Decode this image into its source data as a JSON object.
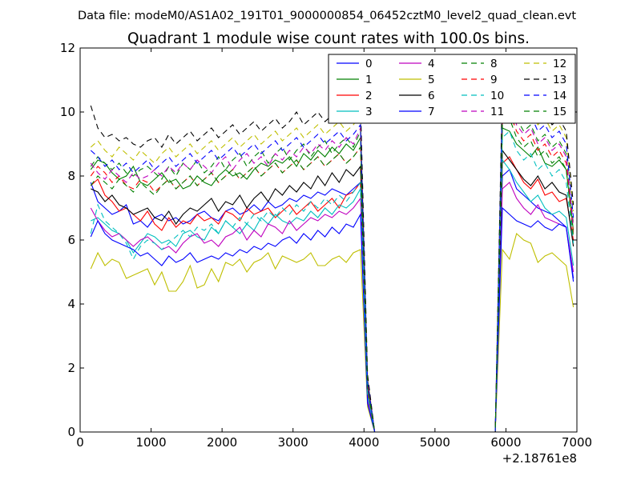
{
  "chart_data": {
    "type": "line",
    "suptitle": "Data file: modeM0/AS1A02_191T01_9000000854_06452cztM0_level2_quad_clean.evt",
    "title": "Quadrant 1 module wise count rates with 100.0s bins.",
    "xlabel": "",
    "ylabel": "",
    "x_offset_label": "+2.18761e8",
    "xlim": [
      0,
      7000
    ],
    "ylim": [
      0,
      12
    ],
    "xticks": [
      0,
      1000,
      2000,
      3000,
      4000,
      5000,
      6000,
      7000
    ],
    "yticks": [
      0,
      2,
      4,
      6,
      8,
      10,
      12
    ],
    "legend": "top-right",
    "x": [
      150,
      250,
      350,
      450,
      550,
      650,
      750,
      850,
      950,
      1050,
      1150,
      1250,
      1350,
      1450,
      1550,
      1650,
      1750,
      1850,
      1950,
      2050,
      2150,
      2250,
      2350,
      2450,
      2550,
      2650,
      2750,
      2850,
      2950,
      3050,
      3150,
      3250,
      3350,
      3450,
      3550,
      3650,
      3750,
      3850,
      3950,
      4050,
      4150,
      4250,
      4350,
      4450,
      4550,
      4650,
      4750,
      4850,
      4950,
      5050,
      5150,
      5250,
      5350,
      5450,
      5550,
      5650,
      5750,
      5850,
      5950,
      6050,
      6150,
      6250,
      6350,
      6450,
      6550,
      6650,
      6750,
      6850,
      6950
    ],
    "series": [
      {
        "name": "0",
        "color": "#0000ff",
        "dash": "solid",
        "values": [
          7.8,
          7.2,
          7.0,
          6.8,
          6.9,
          7.1,
          6.5,
          6.6,
          6.4,
          6.7,
          6.8,
          6.6,
          6.7,
          6.5,
          6.6,
          6.8,
          6.9,
          6.7,
          6.6,
          6.9,
          7.0,
          6.8,
          6.9,
          7.1,
          6.9,
          7.2,
          7.0,
          7.1,
          7.3,
          7.2,
          7.4,
          7.3,
          7.5,
          7.4,
          7.6,
          7.5,
          7.4,
          7.6,
          7.8,
          1.2,
          0,
          0,
          0,
          0,
          0,
          0,
          0,
          0,
          0,
          0,
          0,
          0,
          0,
          0,
          0,
          0,
          0,
          0,
          8.0,
          8.2,
          7.6,
          7.4,
          7.2,
          7.0,
          6.9,
          6.8,
          6.6,
          6.4,
          4.8
        ]
      },
      {
        "name": "1",
        "color": "#008000",
        "dash": "solid",
        "values": [
          8.2,
          8.5,
          8.4,
          8.1,
          7.9,
          8.0,
          8.3,
          7.8,
          7.7,
          7.9,
          8.1,
          7.8,
          7.9,
          7.6,
          7.7,
          8.0,
          7.8,
          7.7,
          8.0,
          8.2,
          8.0,
          8.1,
          7.9,
          8.2,
          8.4,
          8.3,
          8.5,
          8.4,
          8.6,
          8.3,
          8.7,
          8.5,
          8.8,
          8.6,
          8.9,
          8.7,
          9.0,
          8.8,
          9.2,
          1.4,
          0,
          0,
          0,
          0,
          0,
          0,
          0,
          0,
          0,
          0,
          0,
          0,
          0,
          0,
          0,
          0,
          0,
          0,
          9.5,
          9.4,
          9.0,
          8.8,
          8.6,
          8.9,
          8.4,
          8.3,
          8.5,
          8.2,
          6.3
        ]
      },
      {
        "name": "2",
        "color": "#ff0000",
        "dash": "solid",
        "values": [
          7.7,
          7.9,
          7.4,
          7.2,
          6.9,
          7.0,
          6.8,
          6.6,
          6.9,
          6.5,
          6.3,
          6.7,
          6.4,
          6.6,
          6.5,
          6.8,
          6.6,
          6.7,
          6.5,
          6.9,
          6.8,
          6.6,
          7.0,
          6.8,
          6.9,
          7.0,
          6.7,
          6.9,
          7.1,
          6.8,
          7.0,
          7.2,
          6.9,
          7.1,
          7.3,
          7.0,
          7.4,
          7.5,
          7.8,
          1.3,
          0,
          0,
          0,
          0,
          0,
          0,
          0,
          0,
          0,
          0,
          0,
          0,
          0,
          0,
          0,
          0,
          0,
          0,
          8.4,
          8.6,
          8.2,
          7.8,
          7.6,
          7.9,
          7.4,
          7.5,
          7.2,
          7.3,
          6.0
        ]
      },
      {
        "name": "3",
        "color": "#00bfbf",
        "dash": "solid",
        "values": [
          6.6,
          6.7,
          6.5,
          6.3,
          6.2,
          6.0,
          5.6,
          5.9,
          6.2,
          6.1,
          5.9,
          6.0,
          5.8,
          6.2,
          6.3,
          6.1,
          6.0,
          6.4,
          6.2,
          6.6,
          6.4,
          6.2,
          6.5,
          6.3,
          6.7,
          6.5,
          6.8,
          6.6,
          6.5,
          6.7,
          6.6,
          6.9,
          6.7,
          7.0,
          6.8,
          7.1,
          7.0,
          7.2,
          7.6,
          1.1,
          0,
          0,
          0,
          0,
          0,
          0,
          0,
          0,
          0,
          0,
          0,
          0,
          0,
          0,
          0,
          0,
          0,
          0,
          8.5,
          8.2,
          7.8,
          7.5,
          7.2,
          7.4,
          7.0,
          6.8,
          6.9,
          6.7,
          5.2
        ]
      },
      {
        "name": "4",
        "color": "#bf00bf",
        "dash": "solid",
        "values": [
          7.0,
          6.6,
          6.3,
          6.1,
          6.2,
          6.0,
          5.8,
          6.0,
          6.1,
          5.9,
          5.7,
          5.8,
          5.6,
          5.9,
          6.1,
          6.2,
          5.9,
          6.0,
          5.8,
          6.1,
          6.2,
          6.4,
          6.0,
          6.3,
          6.1,
          6.5,
          6.4,
          6.2,
          6.6,
          6.3,
          6.5,
          6.7,
          6.6,
          6.8,
          6.7,
          6.9,
          6.8,
          7.0,
          7.3,
          1.0,
          0,
          0,
          0,
          0,
          0,
          0,
          0,
          0,
          0,
          0,
          0,
          0,
          0,
          0,
          0,
          0,
          0,
          0,
          7.6,
          7.8,
          7.3,
          7.0,
          6.8,
          7.1,
          6.7,
          6.6,
          6.5,
          6.4,
          5.0
        ]
      },
      {
        "name": "5",
        "color": "#bfbf00",
        "dash": "solid",
        "values": [
          5.1,
          5.6,
          5.2,
          5.4,
          5.3,
          4.8,
          4.9,
          5.0,
          5.1,
          4.6,
          5.0,
          4.4,
          4.4,
          4.7,
          5.2,
          4.5,
          4.6,
          5.1,
          4.7,
          5.3,
          5.2,
          5.4,
          5.0,
          5.3,
          5.4,
          5.6,
          5.1,
          5.5,
          5.4,
          5.3,
          5.4,
          5.6,
          5.2,
          5.2,
          5.4,
          5.5,
          5.3,
          5.6,
          5.7,
          0.8,
          0,
          0,
          0,
          0,
          0,
          0,
          0,
          0,
          0,
          0,
          0,
          0,
          0,
          0,
          0,
          0,
          0,
          0,
          5.7,
          5.4,
          6.2,
          6.0,
          5.9,
          5.3,
          5.5,
          5.6,
          5.4,
          5.2,
          3.9
        ]
      },
      {
        "name": "6",
        "color": "#000000",
        "dash": "solid",
        "values": [
          7.6,
          7.5,
          7.2,
          7.4,
          7.1,
          7.0,
          6.8,
          6.9,
          7.0,
          6.7,
          6.6,
          6.9,
          6.5,
          6.8,
          7.0,
          6.9,
          7.1,
          7.3,
          6.9,
          7.2,
          7.1,
          7.4,
          7.0,
          7.3,
          7.5,
          7.2,
          7.6,
          7.4,
          7.7,
          7.5,
          7.8,
          7.6,
          8.0,
          7.7,
          8.1,
          7.8,
          8.2,
          8.0,
          8.3,
          1.5,
          0,
          0,
          0,
          0,
          0,
          0,
          0,
          0,
          0,
          0,
          0,
          0,
          0,
          0,
          0,
          0,
          0,
          0,
          8.8,
          8.5,
          8.2,
          7.9,
          7.7,
          8.0,
          7.6,
          7.8,
          7.5,
          7.4,
          5.8
        ]
      },
      {
        "name": "7",
        "color": "#0000ff",
        "dash": "solid",
        "values": [
          6.1,
          6.6,
          6.2,
          6.0,
          5.9,
          5.8,
          5.7,
          5.5,
          5.6,
          5.4,
          5.2,
          5.5,
          5.3,
          5.4,
          5.6,
          5.3,
          5.4,
          5.5,
          5.4,
          5.6,
          5.5,
          5.7,
          5.6,
          5.8,
          5.7,
          5.9,
          5.8,
          6.0,
          6.1,
          5.9,
          6.2,
          6.0,
          6.3,
          6.1,
          6.4,
          6.2,
          6.5,
          6.4,
          6.8,
          0.9,
          0,
          0,
          0,
          0,
          0,
          0,
          0,
          0,
          0,
          0,
          0,
          0,
          0,
          0,
          0,
          0,
          0,
          0,
          7.0,
          6.8,
          6.6,
          6.5,
          6.4,
          6.6,
          6.4,
          6.3,
          6.5,
          6.4,
          4.7
        ]
      },
      {
        "name": "8",
        "color": "#008000",
        "dash": "dashed",
        "values": [
          8.3,
          8.6,
          8.4,
          8.2,
          8.4,
          8.1,
          8.0,
          8.2,
          8.3,
          8.1,
          7.9,
          8.3,
          8.0,
          8.4,
          8.2,
          8.5,
          8.1,
          8.3,
          8.6,
          8.2,
          8.5,
          8.7,
          8.3,
          8.6,
          8.8,
          8.4,
          8.7,
          8.9,
          8.5,
          8.8,
          9.0,
          8.6,
          8.9,
          9.1,
          8.7,
          9.0,
          9.2,
          8.9,
          9.4,
          1.6,
          0,
          0,
          0,
          0,
          0,
          0,
          0,
          0,
          0,
          0,
          0,
          0,
          0,
          0,
          0,
          0,
          0,
          0,
          10.2,
          10.4,
          9.8,
          9.4,
          9.6,
          9.1,
          9.3,
          8.9,
          9.1,
          8.7,
          6.5
        ]
      },
      {
        "name": "9",
        "color": "#ff0000",
        "dash": "dashed",
        "values": [
          8.0,
          8.3,
          8.1,
          7.8,
          8.0,
          7.7,
          7.6,
          7.9,
          7.8,
          7.5,
          7.7,
          7.9,
          7.6,
          7.8,
          8.0,
          7.7,
          7.9,
          8.1,
          7.8,
          8.0,
          8.2,
          7.9,
          8.1,
          8.3,
          8.0,
          8.2,
          8.4,
          8.1,
          8.3,
          8.5,
          8.2,
          8.4,
          8.6,
          8.3,
          8.5,
          8.7,
          8.4,
          8.6,
          8.9,
          1.4,
          0,
          0,
          0,
          0,
          0,
          0,
          0,
          0,
          0,
          0,
          0,
          0,
          0,
          0,
          0,
          0,
          0,
          0,
          9.8,
          10.0,
          9.4,
          9.1,
          9.3,
          8.8,
          9.0,
          8.6,
          8.8,
          8.4,
          6.2
        ]
      },
      {
        "name": "10",
        "color": "#00bfbf",
        "dash": "dashed",
        "values": [
          6.2,
          7.1,
          6.6,
          6.4,
          6.2,
          5.9,
          5.4,
          5.8,
          6.0,
          5.9,
          5.7,
          5.9,
          6.1,
          6.3,
          6.1,
          6.4,
          6.3,
          6.5,
          6.2,
          6.6,
          6.4,
          6.7,
          6.5,
          6.8,
          6.6,
          6.9,
          6.7,
          7.0,
          6.8,
          7.1,
          6.9,
          7.2,
          7.0,
          7.3,
          7.1,
          7.4,
          7.2,
          7.5,
          7.8,
          1.2,
          0,
          0,
          0,
          0,
          0,
          0,
          0,
          0,
          0,
          0,
          0,
          0,
          0,
          0,
          0,
          0,
          0,
          0,
          9.2,
          9.4,
          8.8,
          8.5,
          8.7,
          8.2,
          8.4,
          8.0,
          8.2,
          7.8,
          5.9
        ]
      },
      {
        "name": "11",
        "color": "#bf00bf",
        "dash": "dashed",
        "values": [
          8.4,
          8.1,
          7.9,
          8.2,
          8.0,
          7.8,
          8.1,
          7.9,
          8.0,
          8.2,
          8.0,
          8.3,
          8.1,
          8.4,
          8.2,
          8.5,
          8.3,
          8.1,
          8.4,
          8.6,
          8.2,
          8.5,
          8.7,
          8.4,
          8.6,
          8.3,
          8.7,
          8.5,
          8.8,
          8.6,
          8.9,
          8.7,
          9.0,
          8.8,
          9.1,
          8.9,
          9.2,
          9.0,
          9.5,
          1.6,
          0,
          0,
          0,
          0,
          0,
          0,
          0,
          0,
          0,
          0,
          0,
          0,
          0,
          0,
          0,
          0,
          0,
          0,
          10.0,
          10.3,
          9.6,
          9.3,
          9.5,
          9.0,
          9.2,
          8.8,
          9.0,
          8.6,
          6.4
        ]
      },
      {
        "name": "12",
        "color": "#bfbf00",
        "dash": "dashed",
        "values": [
          8.9,
          9.1,
          8.8,
          8.6,
          8.9,
          8.7,
          8.5,
          8.8,
          8.6,
          8.4,
          8.7,
          8.9,
          8.6,
          8.8,
          9.0,
          8.7,
          8.9,
          9.1,
          8.8,
          9.0,
          9.2,
          8.9,
          9.1,
          9.3,
          9.0,
          9.2,
          9.4,
          9.1,
          9.3,
          9.5,
          9.2,
          9.4,
          9.6,
          9.3,
          9.5,
          9.7,
          9.4,
          9.6,
          9.9,
          1.7,
          0,
          0,
          0,
          0,
          0,
          0,
          0,
          0,
          0,
          0,
          0,
          0,
          0,
          0,
          0,
          0,
          0,
          0,
          10.6,
          10.8,
          10.2,
          9.9,
          10.1,
          9.6,
          9.8,
          9.4,
          9.6,
          9.2,
          6.9
        ]
      },
      {
        "name": "13",
        "color": "#000000",
        "dash": "dashed",
        "values": [
          10.2,
          9.5,
          9.2,
          9.3,
          9.1,
          9.2,
          9.0,
          8.9,
          9.1,
          9.2,
          8.9,
          9.3,
          9.0,
          9.2,
          9.4,
          9.1,
          9.3,
          9.5,
          9.2,
          9.4,
          9.6,
          9.3,
          9.5,
          9.7,
          9.4,
          9.6,
          9.8,
          9.5,
          9.7,
          10.0,
          9.6,
          9.8,
          10.0,
          9.7,
          9.9,
          10.1,
          9.8,
          10.0,
          10.3,
          1.8,
          0,
          0,
          0,
          0,
          0,
          0,
          0,
          0,
          0,
          0,
          0,
          0,
          0,
          0,
          0,
          0,
          0,
          0,
          10.8,
          11.0,
          10.4,
          10.1,
          10.3,
          9.8,
          10.0,
          9.6,
          9.8,
          9.4,
          7.1
        ]
      },
      {
        "name": "14",
        "color": "#0000ff",
        "dash": "dashed",
        "values": [
          8.8,
          8.6,
          8.3,
          8.5,
          8.2,
          8.4,
          8.1,
          8.3,
          8.5,
          8.2,
          8.4,
          8.6,
          8.3,
          8.5,
          8.7,
          8.4,
          8.6,
          8.8,
          8.5,
          8.7,
          8.9,
          8.6,
          8.8,
          9.0,
          8.7,
          8.9,
          9.1,
          8.8,
          9.0,
          9.2,
          8.9,
          9.1,
          9.3,
          9.0,
          9.2,
          9.4,
          9.1,
          9.3,
          9.6,
          1.6,
          0,
          0,
          0,
          0,
          0,
          0,
          0,
          0,
          0,
          0,
          0,
          0,
          0,
          0,
          0,
          0,
          0,
          0,
          10.4,
          10.6,
          10.0,
          9.7,
          9.9,
          9.4,
          9.6,
          9.2,
          9.4,
          9.0,
          6.7
        ]
      },
      {
        "name": "15",
        "color": "#008000",
        "dash": "dashed",
        "values": [
          7.7,
          8.0,
          7.8,
          7.6,
          7.9,
          7.7,
          7.5,
          7.8,
          7.6,
          7.4,
          7.7,
          7.9,
          7.6,
          7.8,
          8.0,
          7.7,
          7.9,
          8.1,
          7.8,
          8.0,
          8.2,
          7.9,
          8.1,
          8.3,
          8.0,
          8.2,
          8.4,
          8.1,
          8.3,
          8.5,
          8.2,
          8.4,
          8.6,
          8.3,
          8.5,
          8.7,
          8.4,
          8.6,
          8.9,
          1.4,
          0,
          0,
          0,
          0,
          0,
          0,
          0,
          0,
          0,
          0,
          0,
          0,
          0,
          0,
          0,
          0,
          0,
          0,
          9.6,
          9.8,
          9.2,
          8.9,
          9.1,
          8.6,
          8.8,
          8.4,
          8.6,
          8.2,
          6.1
        ]
      }
    ]
  }
}
